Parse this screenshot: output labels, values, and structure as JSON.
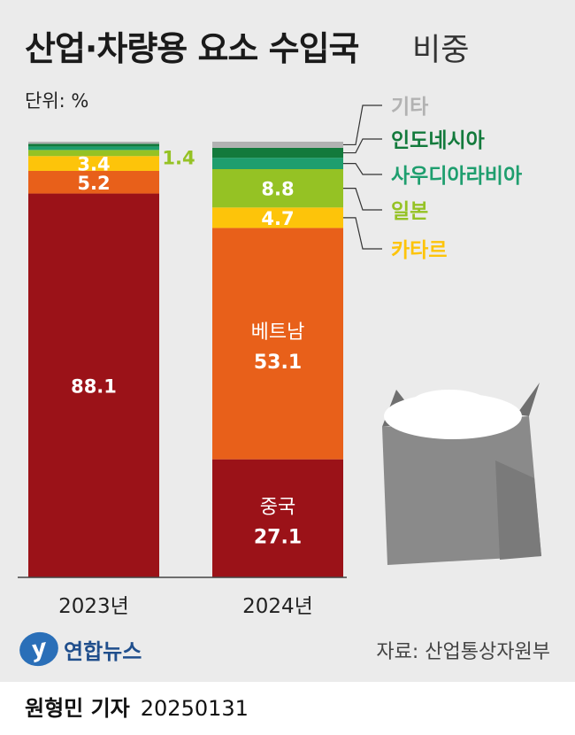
{
  "title": "산업·차량용 요소 수입국",
  "title_suffix": "비중",
  "unit_label": "단위: %",
  "source": "자료: 산업통상자원부",
  "credit": {
    "author": "원형민 기자",
    "date": "20250131"
  },
  "logo": {
    "mark": "y",
    "text": "연합뉴스"
  },
  "colors": {
    "china": "#9b1218",
    "vietnam": "#e8601a",
    "qatar": "#fdc40a",
    "japan": "#95c224",
    "saudi": "#1e9e6e",
    "indonesia": "#137a3c",
    "other": "#b2b2b2"
  },
  "chart_data": {
    "type": "bar",
    "stacked": true,
    "normalized": true,
    "categories": [
      "2023년",
      "2024년"
    ],
    "series": [
      {
        "name": "중국",
        "key": "china",
        "values": [
          88.1,
          27.1
        ]
      },
      {
        "name": "베트남",
        "key": "vietnam",
        "values": [
          5.2,
          53.1
        ]
      },
      {
        "name": "카타르",
        "key": "qatar",
        "values": [
          3.4,
          4.7
        ]
      },
      {
        "name": "일본",
        "key": "japan",
        "values": [
          1.4,
          8.8
        ]
      },
      {
        "name": "사우디아라비아",
        "key": "saudi",
        "values": [
          0.8,
          2.6
        ]
      },
      {
        "name": "인도네시아",
        "key": "indonesia",
        "values": [
          0.6,
          2.3
        ]
      },
      {
        "name": "기타",
        "key": "other",
        "values": [
          0.5,
          1.4
        ]
      }
    ],
    "bar_labels": [
      {
        "category": 0,
        "series": 0,
        "text": "88.1"
      },
      {
        "category": 0,
        "series": 1,
        "text": "5.2"
      },
      {
        "category": 0,
        "series": 2,
        "text": "3.4"
      },
      {
        "category": 0,
        "series": 3,
        "text": "1.4",
        "outside": true
      },
      {
        "category": 1,
        "series": 0,
        "name": "중국",
        "text": "27.1"
      },
      {
        "category": 1,
        "series": 1,
        "name": "베트남",
        "text": "53.1"
      },
      {
        "category": 1,
        "series": 2,
        "text": "4.7"
      },
      {
        "category": 1,
        "series": 3,
        "text": "8.8"
      }
    ],
    "legend": [
      "기타",
      "인도네시아",
      "사우디아라비아",
      "일본",
      "카타르"
    ],
    "legend_placement": "right"
  }
}
